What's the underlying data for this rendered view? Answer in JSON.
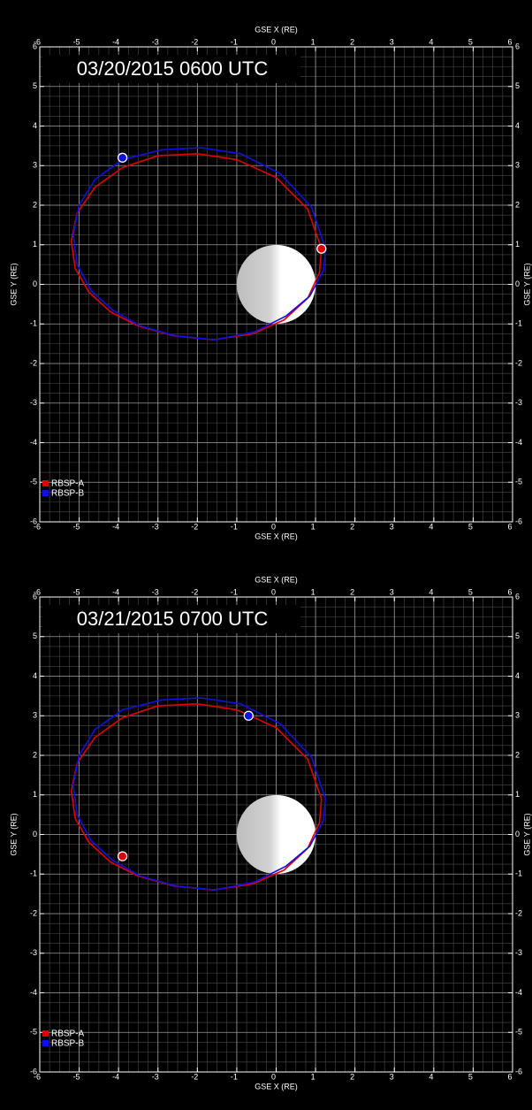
{
  "chart_data": [
    {
      "type": "orbit",
      "title": "03/20/2015  0600 UTC",
      "xlabel": "GSE X (RE)",
      "ylabel": "GSE Y (RE)",
      "xlim": [
        -6,
        6
      ],
      "ylim": [
        -6,
        6
      ],
      "xticks": [
        -6,
        -5,
        -4,
        -3,
        -2,
        -1,
        0,
        1,
        2,
        3,
        4,
        5,
        6
      ],
      "yticks": [
        -6,
        -5,
        -4,
        -3,
        -2,
        -1,
        0,
        1,
        2,
        3,
        4,
        5,
        6
      ],
      "grid": true,
      "minor_step": 0.25,
      "legend": "lower left",
      "earth": {
        "x": 0,
        "y": 0,
        "r": 1
      },
      "series": [
        {
          "name": "RBSP-A",
          "color": "#e00000",
          "x": [
            1.15,
            0.8,
            0.0,
            -1.0,
            -2.0,
            -3.0,
            -3.9,
            -4.6,
            -5.05,
            -5.2,
            -5.1,
            -4.75,
            -4.2,
            -3.5,
            -2.6,
            -1.6,
            -0.6,
            0.2,
            0.8,
            1.1,
            1.15
          ],
          "y": [
            0.9,
            1.9,
            2.7,
            3.15,
            3.3,
            3.25,
            2.95,
            2.45,
            1.8,
            1.1,
            0.4,
            -0.2,
            -0.7,
            -1.05,
            -1.3,
            -1.4,
            -1.25,
            -0.9,
            -0.35,
            0.3,
            0.9
          ],
          "position": {
            "x": 1.15,
            "y": 0.9
          }
        },
        {
          "name": "RBSP-B",
          "color": "#1010e0",
          "x": [
            1.25,
            0.9,
            0.1,
            -0.9,
            -1.9,
            -2.9,
            -3.9,
            -4.6,
            -5.0,
            -5.15,
            -5.05,
            -4.7,
            -4.15,
            -3.45,
            -2.55,
            -1.55,
            -0.55,
            0.25,
            0.85,
            1.2,
            1.25
          ],
          "y": [
            0.9,
            1.95,
            2.8,
            3.3,
            3.45,
            3.4,
            3.15,
            2.65,
            2.0,
            1.25,
            0.5,
            -0.15,
            -0.65,
            -1.05,
            -1.3,
            -1.4,
            -1.2,
            -0.8,
            -0.3,
            0.35,
            0.9
          ],
          "position": {
            "x": -3.9,
            "y": 3.2
          }
        }
      ]
    },
    {
      "type": "orbit",
      "title": "03/21/2015  0700 UTC",
      "xlabel": "GSE X (RE)",
      "ylabel": "GSE Y (RE)",
      "xlim": [
        -6,
        6
      ],
      "ylim": [
        -6,
        6
      ],
      "xticks": [
        -6,
        -5,
        -4,
        -3,
        -2,
        -1,
        0,
        1,
        2,
        3,
        4,
        5,
        6
      ],
      "yticks": [
        -6,
        -5,
        -4,
        -3,
        -2,
        -1,
        0,
        1,
        2,
        3,
        4,
        5,
        6
      ],
      "grid": true,
      "minor_step": 0.25,
      "legend": "lower left",
      "earth": {
        "x": 0,
        "y": 0,
        "r": 1
      },
      "series": [
        {
          "name": "RBSP-A",
          "color": "#e00000",
          "x": [
            1.15,
            0.8,
            0.0,
            -1.0,
            -2.0,
            -3.0,
            -3.9,
            -4.6,
            -5.05,
            -5.2,
            -5.1,
            -4.75,
            -4.2,
            -3.5,
            -2.6,
            -1.6,
            -0.6,
            0.2,
            0.8,
            1.1,
            1.15
          ],
          "y": [
            0.9,
            1.9,
            2.7,
            3.15,
            3.3,
            3.25,
            2.95,
            2.45,
            1.8,
            1.1,
            0.4,
            -0.2,
            -0.7,
            -1.05,
            -1.3,
            -1.4,
            -1.25,
            -0.9,
            -0.35,
            0.3,
            0.9
          ],
          "position": {
            "x": -3.9,
            "y": -0.55
          }
        },
        {
          "name": "RBSP-B",
          "color": "#1010e0",
          "x": [
            1.25,
            0.9,
            0.1,
            -0.9,
            -1.9,
            -2.9,
            -3.9,
            -4.6,
            -5.0,
            -5.15,
            -5.05,
            -4.7,
            -4.15,
            -3.45,
            -2.55,
            -1.55,
            -0.55,
            0.25,
            0.85,
            1.2,
            1.25
          ],
          "y": [
            0.9,
            1.95,
            2.8,
            3.3,
            3.45,
            3.4,
            3.15,
            2.65,
            2.0,
            1.25,
            0.5,
            -0.15,
            -0.65,
            -1.05,
            -1.3,
            -1.4,
            -1.2,
            -0.8,
            -0.3,
            0.35,
            0.9
          ],
          "position": {
            "x": -0.7,
            "y": 3.0
          }
        }
      ]
    }
  ]
}
